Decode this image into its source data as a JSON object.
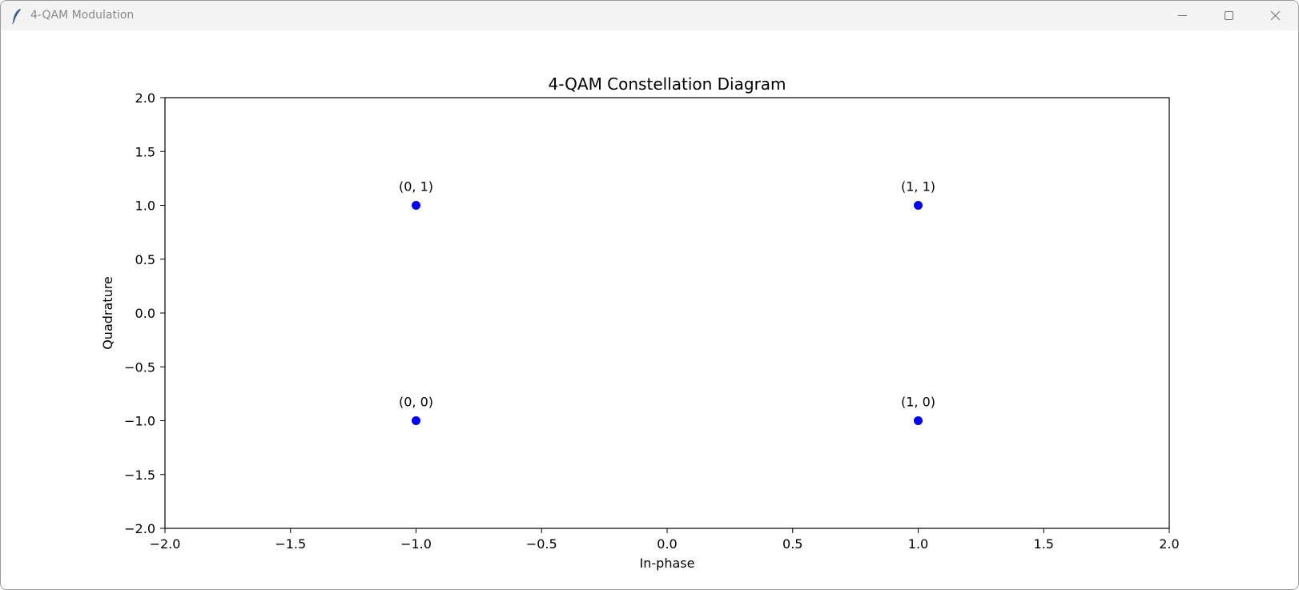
{
  "window": {
    "title": "4-QAM Modulation",
    "icon": "feather-icon",
    "controls": [
      "minimize-icon",
      "maximize-icon",
      "close-icon"
    ]
  },
  "chart_data": {
    "type": "scatter",
    "title": "4-QAM Constellation Diagram",
    "xlabel": "In-phase",
    "ylabel": "Quadrature",
    "xlim": [
      -2.0,
      2.0
    ],
    "ylim": [
      -2.0,
      2.0
    ],
    "xticks": [
      -2.0,
      -1.5,
      -1.0,
      -0.5,
      0.0,
      0.5,
      1.0,
      1.5,
      2.0
    ],
    "xtick_labels": [
      "−2.0",
      "−1.5",
      "−1.0",
      "−0.5",
      "0.0",
      "0.5",
      "1.0",
      "1.5",
      "2.0"
    ],
    "yticks": [
      2.0,
      1.5,
      1.0,
      0.5,
      0.0,
      -0.5,
      -1.0,
      -1.5,
      -2.0
    ],
    "ytick_labels": [
      "2.0",
      "1.5",
      "1.0",
      "0.5",
      "0.0",
      "−0.5",
      "−1.0",
      "−1.5",
      "−2.0"
    ],
    "grid": false,
    "marker_color": "#0000ff",
    "points": [
      {
        "x": -1,
        "y": 1,
        "label": "(0, 1)"
      },
      {
        "x": 1,
        "y": 1,
        "label": "(1, 1)"
      },
      {
        "x": -1,
        "y": -1,
        "label": "(0, 0)"
      },
      {
        "x": 1,
        "y": -1,
        "label": "(1, 0)"
      }
    ]
  }
}
